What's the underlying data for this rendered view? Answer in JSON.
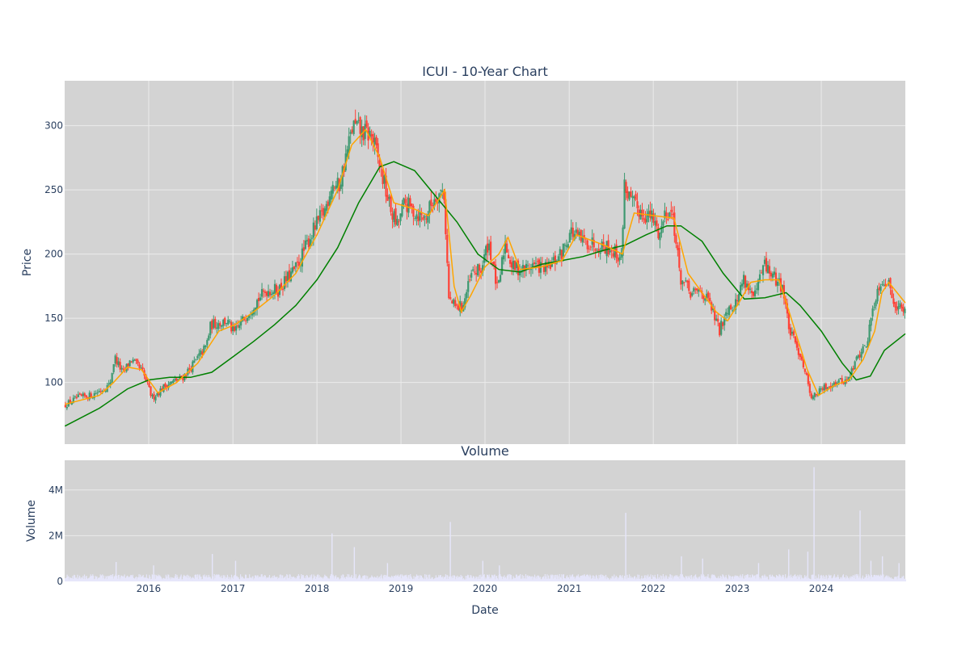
{
  "colors": {
    "plot_bg": "#d3d3d3",
    "grid": "#ebebeb",
    "up": "#3d9970",
    "down": "#ff4136",
    "ma_short": "#ffa500",
    "ma_long": "#008000",
    "volume": "#e6e6fa"
  },
  "chart_data": [
    {
      "type": "candlestick",
      "title": "ICUI - 10-Year Chart",
      "ylabel": "Price",
      "xlim": [
        "2015-01-01",
        "2024-12-31"
      ],
      "ylim": [
        52,
        335
      ],
      "yticks": [
        100,
        150,
        200,
        250,
        300
      ],
      "grid": true,
      "price_path": [
        [
          "2015-01-02",
          82
        ],
        [
          "2015-03-01",
          88
        ],
        [
          "2015-05-01",
          90
        ],
        [
          "2015-07-20",
          98
        ],
        [
          "2015-08-10",
          120
        ],
        [
          "2015-09-15",
          107
        ],
        [
          "2015-10-20",
          118
        ],
        [
          "2015-12-10",
          108
        ],
        [
          "2016-01-20",
          88
        ],
        [
          "2016-03-20",
          98
        ],
        [
          "2016-06-01",
          104
        ],
        [
          "2016-07-20",
          115
        ],
        [
          "2016-09-10",
          128
        ],
        [
          "2016-10-01",
          145
        ],
        [
          "2016-12-10",
          148
        ],
        [
          "2017-01-10",
          138
        ],
        [
          "2017-03-01",
          152
        ],
        [
          "2017-04-10",
          162
        ],
        [
          "2017-06-01",
          172
        ],
        [
          "2017-07-20",
          172
        ],
        [
          "2017-10-10",
          190
        ],
        [
          "2017-12-10",
          215
        ],
        [
          "2018-01-10",
          225
        ],
        [
          "2018-02-10",
          235
        ],
        [
          "2018-03-10",
          255
        ],
        [
          "2018-04-10",
          252
        ],
        [
          "2018-05-10",
          275
        ],
        [
          "2018-06-10",
          300
        ],
        [
          "2018-07-20",
          295
        ],
        [
          "2018-09-01",
          292
        ],
        [
          "2018-10-10",
          265
        ],
        [
          "2018-11-20",
          235
        ],
        [
          "2018-12-20",
          222
        ],
        [
          "2019-01-20",
          240
        ],
        [
          "2019-03-10",
          232
        ],
        [
          "2019-04-20",
          228
        ],
        [
          "2019-06-01",
          245
        ],
        [
          "2019-07-10",
          250
        ],
        [
          "2019-08-01",
          165
        ],
        [
          "2019-09-01",
          158
        ],
        [
          "2019-10-01",
          160
        ],
        [
          "2019-11-10",
          185
        ],
        [
          "2019-12-20",
          188
        ],
        [
          "2020-01-20",
          210
        ],
        [
          "2020-03-01",
          170
        ],
        [
          "2020-04-01",
          210
        ],
        [
          "2020-05-01",
          190
        ],
        [
          "2020-06-20",
          188
        ],
        [
          "2020-08-01",
          192
        ],
        [
          "2020-10-01",
          188
        ],
        [
          "2020-12-01",
          200
        ],
        [
          "2021-01-10",
          218
        ],
        [
          "2021-03-01",
          210
        ],
        [
          "2021-05-01",
          208
        ],
        [
          "2021-07-01",
          205
        ],
        [
          "2021-08-20",
          196
        ],
        [
          "2021-09-01",
          255
        ],
        [
          "2021-10-01",
          240
        ],
        [
          "2021-11-20",
          232
        ],
        [
          "2022-01-01",
          228
        ],
        [
          "2022-02-01",
          215
        ],
        [
          "2022-03-01",
          235
        ],
        [
          "2022-04-01",
          230
        ],
        [
          "2022-05-01",
          182
        ],
        [
          "2022-06-20",
          168
        ],
        [
          "2022-08-01",
          172
        ],
        [
          "2022-09-10",
          160
        ],
        [
          "2022-10-20",
          140
        ],
        [
          "2022-11-20",
          158
        ],
        [
          "2023-01-01",
          162
        ],
        [
          "2023-02-01",
          182
        ],
        [
          "2023-03-20",
          165
        ],
        [
          "2023-05-01",
          192
        ],
        [
          "2023-06-20",
          180
        ],
        [
          "2023-07-20",
          175
        ],
        [
          "2023-08-20",
          140
        ],
        [
          "2023-10-10",
          120
        ],
        [
          "2023-11-25",
          88
        ],
        [
          "2024-01-10",
          95
        ],
        [
          "2024-03-01",
          100
        ],
        [
          "2024-05-01",
          102
        ],
        [
          "2024-06-10",
          120
        ],
        [
          "2024-07-20",
          130
        ],
        [
          "2024-08-20",
          162
        ],
        [
          "2024-09-20",
          180
        ],
        [
          "2024-10-20",
          178
        ],
        [
          "2024-11-20",
          162
        ],
        [
          "2024-12-31",
          155
        ]
      ],
      "ma_short_path": [
        [
          "2015-01-02",
          83
        ],
        [
          "2015-06-01",
          90
        ],
        [
          "2015-08-01",
          100
        ],
        [
          "2015-10-01",
          112
        ],
        [
          "2015-12-01",
          110
        ],
        [
          "2016-02-10",
          92
        ],
        [
          "2016-05-01",
          100
        ],
        [
          "2016-08-01",
          115
        ],
        [
          "2016-11-01",
          140
        ],
        [
          "2017-01-10",
          145
        ],
        [
          "2017-04-01",
          155
        ],
        [
          "2017-07-01",
          168
        ],
        [
          "2017-10-01",
          185
        ],
        [
          "2018-01-01",
          215
        ],
        [
          "2018-04-01",
          250
        ],
        [
          "2018-06-01",
          285
        ],
        [
          "2018-08-01",
          297
        ],
        [
          "2018-10-01",
          275
        ],
        [
          "2018-12-01",
          240
        ],
        [
          "2019-03-01",
          235
        ],
        [
          "2019-05-01",
          230
        ],
        [
          "2019-07-10",
          250
        ],
        [
          "2019-08-20",
          175
        ],
        [
          "2019-09-20",
          155
        ],
        [
          "2019-11-01",
          168
        ],
        [
          "2020-01-01",
          190
        ],
        [
          "2020-03-01",
          200
        ],
        [
          "2020-04-10",
          213
        ],
        [
          "2020-06-01",
          188
        ],
        [
          "2020-09-01",
          190
        ],
        [
          "2020-12-01",
          195
        ],
        [
          "2021-02-01",
          215
        ],
        [
          "2021-06-01",
          207
        ],
        [
          "2021-08-20",
          200
        ],
        [
          "2021-10-10",
          232
        ],
        [
          "2022-01-01",
          230
        ],
        [
          "2022-04-01",
          228
        ],
        [
          "2022-06-01",
          185
        ],
        [
          "2022-08-01",
          170
        ],
        [
          "2022-10-01",
          155
        ],
        [
          "2022-11-20",
          148
        ],
        [
          "2023-01-01",
          160
        ],
        [
          "2023-03-01",
          178
        ],
        [
          "2023-05-01",
          180
        ],
        [
          "2023-07-01",
          180
        ],
        [
          "2023-09-01",
          145
        ],
        [
          "2023-11-01",
          110
        ],
        [
          "2023-12-20",
          90
        ],
        [
          "2024-03-01",
          98
        ],
        [
          "2024-05-01",
          102
        ],
        [
          "2024-07-01",
          118
        ],
        [
          "2024-08-20",
          140
        ],
        [
          "2024-09-20",
          170
        ],
        [
          "2024-10-20",
          178
        ],
        [
          "2024-12-31",
          162
        ]
      ],
      "ma_long_path": [
        [
          "2015-01-02",
          66
        ],
        [
          "2015-06-01",
          80
        ],
        [
          "2015-10-01",
          95
        ],
        [
          "2016-01-01",
          102
        ],
        [
          "2016-04-01",
          104
        ],
        [
          "2016-07-01",
          104
        ],
        [
          "2016-10-01",
          108
        ],
        [
          "2017-01-01",
          120
        ],
        [
          "2017-04-01",
          132
        ],
        [
          "2017-07-01",
          145
        ],
        [
          "2017-10-01",
          160
        ],
        [
          "2018-01-01",
          180
        ],
        [
          "2018-04-01",
          205
        ],
        [
          "2018-07-01",
          240
        ],
        [
          "2018-10-01",
          268
        ],
        [
          "2018-12-01",
          272
        ],
        [
          "2019-03-01",
          265
        ],
        [
          "2019-06-01",
          245
        ],
        [
          "2019-09-01",
          225
        ],
        [
          "2019-12-01",
          200
        ],
        [
          "2020-03-01",
          188
        ],
        [
          "2020-06-01",
          186
        ],
        [
          "2020-09-01",
          192
        ],
        [
          "2020-12-01",
          195
        ],
        [
          "2021-03-01",
          198
        ],
        [
          "2021-06-01",
          203
        ],
        [
          "2021-09-01",
          207
        ],
        [
          "2021-12-01",
          215
        ],
        [
          "2022-03-01",
          222
        ],
        [
          "2022-05-01",
          222
        ],
        [
          "2022-08-01",
          210
        ],
        [
          "2022-11-01",
          185
        ],
        [
          "2023-02-01",
          165
        ],
        [
          "2023-05-01",
          166
        ],
        [
          "2023-08-01",
          170
        ],
        [
          "2023-10-01",
          160
        ],
        [
          "2024-01-01",
          140
        ],
        [
          "2024-04-01",
          115
        ],
        [
          "2024-06-01",
          102
        ],
        [
          "2024-08-01",
          105
        ],
        [
          "2024-10-01",
          125
        ],
        [
          "2024-12-31",
          138
        ]
      ]
    },
    {
      "type": "bar",
      "title": "Volume",
      "ylabel": "Volume",
      "xlabel": "Date",
      "ylim": [
        0,
        5300000
      ],
      "yticks": [
        0,
        2000000,
        4000000
      ],
      "ytick_labels": [
        "0",
        "2M",
        "4M"
      ],
      "xtick_labels": [
        "2016",
        "2017",
        "2018",
        "2019",
        "2020",
        "2021",
        "2022",
        "2023",
        "2024"
      ],
      "baseline_volume": 200000,
      "spikes": [
        [
          "2015-08-10",
          850000
        ],
        [
          "2016-01-20",
          700000
        ],
        [
          "2016-10-01",
          1200000
        ],
        [
          "2017-01-10",
          900000
        ],
        [
          "2018-03-05",
          2100000
        ],
        [
          "2018-06-10",
          1500000
        ],
        [
          "2018-11-01",
          800000
        ],
        [
          "2019-08-01",
          2600000
        ],
        [
          "2019-12-20",
          900000
        ],
        [
          "2020-03-01",
          700000
        ],
        [
          "2021-09-01",
          3000000
        ],
        [
          "2022-05-01",
          1100000
        ],
        [
          "2022-08-01",
          1000000
        ],
        [
          "2023-04-01",
          800000
        ],
        [
          "2023-08-10",
          1400000
        ],
        [
          "2023-11-01",
          1300000
        ],
        [
          "2023-11-28",
          5000000
        ],
        [
          "2024-06-15",
          3100000
        ],
        [
          "2024-08-01",
          900000
        ],
        [
          "2024-09-20",
          1100000
        ],
        [
          "2024-12-01",
          800000
        ]
      ]
    }
  ]
}
